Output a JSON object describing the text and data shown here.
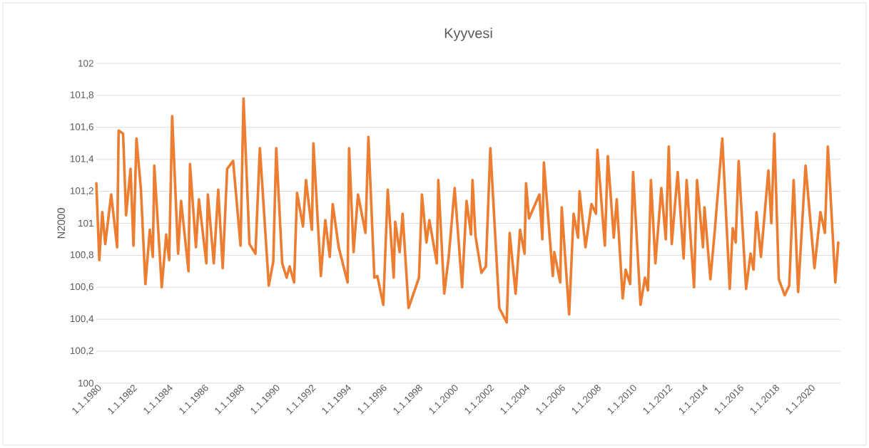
{
  "chart_data": {
    "type": "line",
    "title": "Kyyvesi",
    "ylabel": "N2000",
    "x": [
      "1980-01",
      "1980-03",
      "1980-05",
      "1980-07",
      "1980-11",
      "1981-03",
      "1981-04",
      "1981-07",
      "1981-09",
      "1981-12",
      "1982-02",
      "1982-04",
      "1982-07",
      "1982-10",
      "1983-01",
      "1983-03",
      "1983-04",
      "1983-09",
      "1983-12",
      "1984-02",
      "1984-04",
      "1984-08",
      "1984-10",
      "1985-03",
      "1985-04",
      "1985-08",
      "1985-10",
      "1986-03",
      "1986-04",
      "1986-08",
      "1986-11",
      "1987-02",
      "1987-05",
      "1987-09",
      "1988-02",
      "1988-04",
      "1988-08",
      "1988-12",
      "1989-03",
      "1989-09",
      "1989-12",
      "1990-02",
      "1990-06",
      "1990-09",
      "1990-11",
      "1991-02",
      "1991-04",
      "1991-08",
      "1991-10",
      "1992-02",
      "1992-03",
      "1992-08",
      "1992-11",
      "1993-02",
      "1993-04",
      "1993-08",
      "1994-02",
      "1994-03",
      "1994-06",
      "1994-09",
      "1995-02",
      "1995-04",
      "1995-08",
      "1995-10",
      "1996-02",
      "1996-05",
      "1996-09",
      "1996-10",
      "1997-01",
      "1997-03",
      "1997-07",
      "1998-02",
      "1998-04",
      "1998-07",
      "1998-09",
      "1999-02",
      "1999-03",
      "1999-07",
      "1999-10",
      "2000-02",
      "2000-07",
      "2000-10",
      "2001-01",
      "2001-02",
      "2001-04",
      "2001-08",
      "2001-11",
      "2002-02",
      "2002-08",
      "2003-01",
      "2003-03",
      "2003-07",
      "2003-10",
      "2004-01",
      "2004-02",
      "2004-04",
      "2004-11",
      "2005-01",
      "2005-02",
      "2005-08",
      "2005-09",
      "2006-01",
      "2006-02",
      "2006-07",
      "2006-10",
      "2007-01",
      "2007-02",
      "2007-06",
      "2007-10",
      "2008-01",
      "2008-02",
      "2008-07",
      "2008-09",
      "2009-01",
      "2009-03",
      "2009-07",
      "2009-09",
      "2009-12",
      "2010-02",
      "2010-07",
      "2010-10",
      "2010-12",
      "2011-02",
      "2011-05",
      "2011-09",
      "2011-12",
      "2012-02",
      "2012-04",
      "2012-08",
      "2012-12",
      "2013-02",
      "2013-07",
      "2013-09",
      "2014-01",
      "2014-02",
      "2014-06",
      "2014-09",
      "2015-02",
      "2015-07",
      "2015-09",
      "2015-11",
      "2016-01",
      "2016-06",
      "2016-09",
      "2016-11",
      "2017-01",
      "2017-04",
      "2017-09",
      "2017-11",
      "2018-01",
      "2018-04",
      "2018-08",
      "2018-11",
      "2019-02",
      "2019-05",
      "2019-10",
      "2020-04",
      "2020-08",
      "2020-11",
      "2021-01",
      "2021-06",
      "2021-08"
    ],
    "series": [
      {
        "color": "#ed7d31",
        "values": [
          101.25,
          100.77,
          101.07,
          100.87,
          101.18,
          100.85,
          101.58,
          101.56,
          101.05,
          101.34,
          100.86,
          101.53,
          101.21,
          100.62,
          100.96,
          100.79,
          101.36,
          100.6,
          100.93,
          100.77,
          101.67,
          100.81,
          101.14,
          100.7,
          101.37,
          100.85,
          101.15,
          100.75,
          101.18,
          100.75,
          101.21,
          100.72,
          101.34,
          101.39,
          100.86,
          101.78,
          100.87,
          100.81,
          101.47,
          100.61,
          100.76,
          101.47,
          100.75,
          100.66,
          100.73,
          100.63,
          101.19,
          100.98,
          101.27,
          100.96,
          101.5,
          100.67,
          101.02,
          100.79,
          101.12,
          100.85,
          100.63,
          101.47,
          100.82,
          101.18,
          100.94,
          101.54,
          100.66,
          100.67,
          100.49,
          101.21,
          100.66,
          101.01,
          100.82,
          101.06,
          100.47,
          100.66,
          101.18,
          100.88,
          101.02,
          100.75,
          101.27,
          100.56,
          100.79,
          101.22,
          100.6,
          101.14,
          100.93,
          101.27,
          100.92,
          100.69,
          100.73,
          101.47,
          100.47,
          100.38,
          100.94,
          100.56,
          100.96,
          100.81,
          101.25,
          101.03,
          101.18,
          100.9,
          101.38,
          100.67,
          100.82,
          100.63,
          101.1,
          100.43,
          101.06,
          100.91,
          101.2,
          100.85,
          101.12,
          101.06,
          101.46,
          100.86,
          101.42,
          100.91,
          101.15,
          100.53,
          100.71,
          100.62,
          101.32,
          100.49,
          100.66,
          100.58,
          101.27,
          100.75,
          101.22,
          100.9,
          101.48,
          100.87,
          101.32,
          100.78,
          101.27,
          100.6,
          101.27,
          100.85,
          101.1,
          100.65,
          100.96,
          101.53,
          100.59,
          100.97,
          100.88,
          101.39,
          100.59,
          100.81,
          100.71,
          101.07,
          100.79,
          101.33,
          101.0,
          101.56,
          100.65,
          100.55,
          100.61,
          101.27,
          100.57,
          101.36,
          100.72,
          101.07,
          100.94,
          101.48,
          100.63,
          100.88
        ]
      }
    ],
    "xlim": [
      "1980-01-01",
      "2021-09-15"
    ],
    "xticks": [
      {
        "value": "1980-01-01",
        "label": "1.1.1980"
      },
      {
        "value": "1982-01-01",
        "label": "1.1.1982"
      },
      {
        "value": "1984-01-01",
        "label": "1.1.1984"
      },
      {
        "value": "1986-01-01",
        "label": "1.1.1986"
      },
      {
        "value": "1988-01-01",
        "label": "1.1.1988"
      },
      {
        "value": "1990-01-01",
        "label": "1.1.1990"
      },
      {
        "value": "1992-01-01",
        "label": "1.1.1992"
      },
      {
        "value": "1994-01-01",
        "label": "1.1.1994"
      },
      {
        "value": "1996-01-01",
        "label": "1.1.1996"
      },
      {
        "value": "1998-01-01",
        "label": "1.1.1998"
      },
      {
        "value": "2000-01-01",
        "label": "1.1.2000"
      },
      {
        "value": "2002-01-01",
        "label": "1.1.2002"
      },
      {
        "value": "2004-01-01",
        "label": "1.1.2004"
      },
      {
        "value": "2006-01-01",
        "label": "1.1.2006"
      },
      {
        "value": "2008-01-01",
        "label": "1.1.2008"
      },
      {
        "value": "2010-01-01",
        "label": "1.1.2010"
      },
      {
        "value": "2012-01-01",
        "label": "1.1.2012"
      },
      {
        "value": "2014-01-01",
        "label": "1.1.2014"
      },
      {
        "value": "2016-01-01",
        "label": "1.1.2016"
      },
      {
        "value": "2018-01-01",
        "label": "1.1.2018"
      },
      {
        "value": "2020-01-01",
        "label": "1.1.2020"
      }
    ],
    "ylim": [
      100,
      102
    ],
    "yticks": [
      100,
      {
        "value": 100.2,
        "label": "100,2"
      },
      {
        "value": 100.4,
        "label": "100,4"
      },
      {
        "value": 100.6,
        "label": "100,6"
      },
      {
        "value": 100.8,
        "label": "100,8"
      },
      101,
      {
        "value": 101.2,
        "label": "101,2"
      },
      {
        "value": 101.4,
        "label": "101,4"
      },
      {
        "value": 101.6,
        "label": "101,6"
      },
      {
        "value": 101.8,
        "label": "101,8"
      },
      102
    ],
    "grid": "y"
  }
}
